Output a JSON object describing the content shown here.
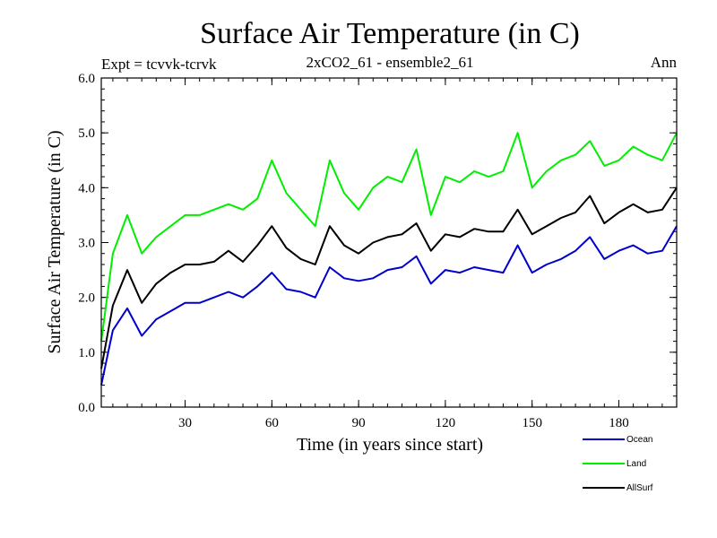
{
  "chart_data": {
    "type": "line",
    "title": "Surface Air Temperature (in C)",
    "subtitle": "2xCO2_61 - ensemble2_61",
    "left_note": "Expt = tcvvk-tcrvk",
    "right_note": "Ann",
    "xlabel": "Time (in years since start)",
    "ylabel": "Surface Air Temperature (in C)",
    "xlim": [
      1,
      200
    ],
    "ylim": [
      0,
      6
    ],
    "xticks": [
      30,
      60,
      90,
      120,
      150,
      180
    ],
    "yticks": [
      0,
      1,
      2,
      3,
      4,
      5,
      6
    ],
    "ytick_labels": [
      "0.0",
      "1.0",
      "2.0",
      "3.0",
      "4.0",
      "5.0",
      "6.0"
    ],
    "grid": false,
    "legend_position": "bottom-right outside",
    "series": [
      {
        "name": "Ocean",
        "color": "#0000cc",
        "x": [
          1,
          5,
          10,
          15,
          20,
          25,
          30,
          35,
          40,
          45,
          50,
          55,
          60,
          65,
          70,
          75,
          80,
          85,
          90,
          95,
          100,
          105,
          110,
          115,
          120,
          125,
          130,
          135,
          140,
          145,
          150,
          155,
          160,
          165,
          170,
          175,
          180,
          185,
          190,
          195,
          200
        ],
        "values": [
          0.4,
          1.4,
          1.8,
          1.3,
          1.6,
          1.75,
          1.9,
          1.9,
          2.0,
          2.1,
          2.0,
          2.2,
          2.45,
          2.15,
          2.1,
          2.0,
          2.55,
          2.35,
          2.3,
          2.35,
          2.5,
          2.55,
          2.75,
          2.25,
          2.5,
          2.45,
          2.55,
          2.5,
          2.45,
          2.95,
          2.45,
          2.6,
          2.7,
          2.85,
          3.1,
          2.7,
          2.85,
          2.95,
          2.8,
          2.85,
          3.3
        ]
      },
      {
        "name": "Land",
        "color": "#00ee00",
        "x": [
          1,
          5,
          10,
          15,
          20,
          25,
          30,
          35,
          40,
          45,
          50,
          55,
          60,
          65,
          70,
          75,
          80,
          85,
          90,
          95,
          100,
          105,
          110,
          115,
          120,
          125,
          130,
          135,
          140,
          145,
          150,
          155,
          160,
          165,
          170,
          175,
          180,
          185,
          190,
          195,
          200
        ],
        "values": [
          1.2,
          2.8,
          3.5,
          2.8,
          3.1,
          3.3,
          3.5,
          3.5,
          3.6,
          3.7,
          3.6,
          3.8,
          4.5,
          3.9,
          3.6,
          3.3,
          4.5,
          3.9,
          3.6,
          4.0,
          4.2,
          4.1,
          4.7,
          3.5,
          4.2,
          4.1,
          4.3,
          4.2,
          4.3,
          5.0,
          4.0,
          4.3,
          4.5,
          4.6,
          4.85,
          4.4,
          4.5,
          4.75,
          4.6,
          4.5,
          5.0
        ]
      },
      {
        "name": "AllSurf",
        "color": "#000000",
        "x": [
          1,
          5,
          10,
          15,
          20,
          25,
          30,
          35,
          40,
          45,
          50,
          55,
          60,
          65,
          70,
          75,
          80,
          85,
          90,
          95,
          100,
          105,
          110,
          115,
          120,
          125,
          130,
          135,
          140,
          145,
          150,
          155,
          160,
          165,
          170,
          175,
          180,
          185,
          190,
          195,
          200
        ],
        "values": [
          0.7,
          1.85,
          2.5,
          1.9,
          2.25,
          2.45,
          2.6,
          2.6,
          2.65,
          2.85,
          2.65,
          2.95,
          3.3,
          2.9,
          2.7,
          2.6,
          3.3,
          2.95,
          2.8,
          3.0,
          3.1,
          3.15,
          3.35,
          2.85,
          3.15,
          3.1,
          3.25,
          3.2,
          3.2,
          3.6,
          3.15,
          3.3,
          3.45,
          3.55,
          3.85,
          3.35,
          3.55,
          3.7,
          3.55,
          3.6,
          4.0
        ]
      }
    ]
  }
}
